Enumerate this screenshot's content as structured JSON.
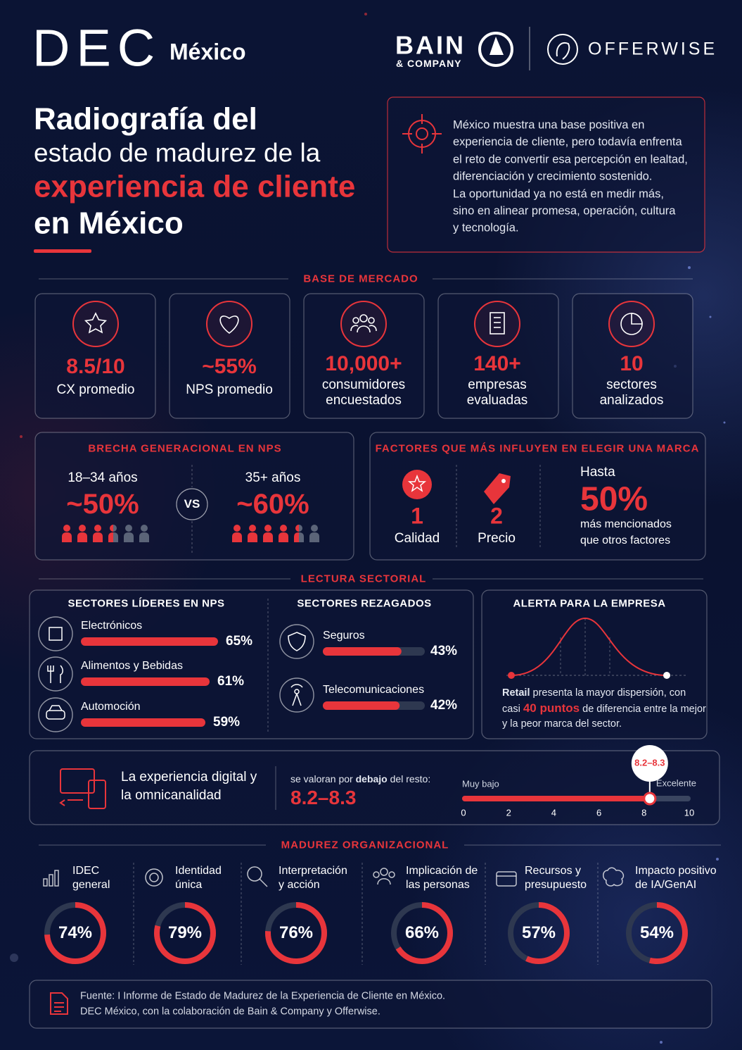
{
  "header": {
    "logo": "DEC",
    "location": "México",
    "partner1": {
      "name": "BAIN",
      "sub": "& COMPANY"
    },
    "partner2": "OFFERWISE"
  },
  "title": {
    "lines": [
      "Radiografía del",
      "estado de madurez de la",
      "experiencia de cliente",
      "en México"
    ]
  },
  "intro": {
    "lines": [
      "México muestra una base positiva en",
      "experiencia de cliente, pero todavía enfrenta",
      "el reto de convertir esa percepción en lealtad,",
      "diferenciación y crecimiento sostenido.",
      "La oportunidad ya no está en medir más,",
      "sino en alinear promesa, operación, cultura",
      "y tecnología."
    ]
  },
  "market_base": {
    "heading": "BASE DE MERCADO",
    "cards": [
      {
        "value": "8.5/10",
        "label": [
          "CX promedio"
        ]
      },
      {
        "value": "~55%",
        "label": [
          "NPS promedio"
        ]
      },
      {
        "value": "10,000+",
        "label": [
          "consumidores",
          "encuestados"
        ]
      },
      {
        "value": "140+",
        "label": [
          "empresas",
          "evaluadas"
        ]
      },
      {
        "value": "10",
        "label": [
          "sectores",
          "analizados"
        ]
      }
    ]
  },
  "generational_gap": {
    "heading": "BRECHA GENERACIONAL EN NPS",
    "vs": "VS",
    "groups": [
      {
        "age": "18–34 años",
        "value": "~50%"
      },
      {
        "age": "35+ años",
        "value": "~60%"
      }
    ]
  },
  "brand_factors": {
    "heading": "FACTORES QUE MÁS INFLUYEN EN ELEGIR UNA MARCA",
    "ranking": [
      {
        "rank": 1,
        "name": "Calidad"
      },
      {
        "rank": 2,
        "name": "Precio"
      }
    ],
    "highlight": {
      "prefix": "Hasta",
      "value": "50%",
      "lines": [
        "más mencionados",
        "que otros factores"
      ]
    }
  },
  "sector_reading": {
    "heading": "LECTURA SECTORIAL",
    "leaders": {
      "heading": "SECTORES LÍDERES EN NPS",
      "items": [
        {
          "name": "Electrónicos",
          "value": 65,
          "value_label": "65%"
        },
        {
          "name": "Alimentos y Bebidas",
          "value": 61,
          "value_label": "61%"
        },
        {
          "name": "Automoción",
          "value": 59,
          "value_label": "59%"
        }
      ]
    },
    "laggards": {
      "heading": "SECTORES REZAGADOS",
      "items": [
        {
          "name": "Seguros",
          "value": 43,
          "value_label": "43%"
        },
        {
          "name": "Telecomunicaciones",
          "value": 42,
          "value_label": "42%"
        }
      ]
    },
    "alert": {
      "heading": "ALERTA PARA LA EMPRESA",
      "text": [
        "Retail",
        " presenta la mayor dispersión, con casi ",
        "40 puntos",
        " de diferencia entre la mejor y la peor marca del sector."
      ]
    }
  },
  "digital": {
    "lines": [
      "La experiencia digital y",
      "la omnicanalidad"
    ],
    "text": [
      "se valoran por ",
      "debajo",
      " del resto:"
    ],
    "score": {
      "range": [
        8.2,
        8.3
      ],
      "label": "8.2–8.3"
    },
    "scale": {
      "min_label": "Muy bajo",
      "max_label": "Excelente",
      "ticks": [
        0,
        2,
        4,
        6,
        8,
        10
      ]
    }
  },
  "maturity": {
    "heading": "MADUREZ ORGANIZACIONAL",
    "items": [
      {
        "label": [
          "IDEC",
          "general"
        ],
        "value": 74,
        "value_label": "74%"
      },
      {
        "label": [
          "Identidad",
          "única"
        ],
        "value": 79,
        "value_label": "79%"
      },
      {
        "label": [
          "Interpretación",
          "y acción"
        ],
        "value": 76,
        "value_label": "76%"
      },
      {
        "label": [
          "Implicación de",
          "las personas"
        ],
        "value": 66,
        "value_label": "66%"
      },
      {
        "label": [
          "Recursos y",
          "presupuesto"
        ],
        "value": 57,
        "value_label": "57%"
      },
      {
        "label": [
          "Impacto positivo",
          "de IA/GenAI"
        ],
        "value": 54,
        "value_label": "54%"
      }
    ]
  },
  "source": {
    "lines": [
      "Fuente: I Informe de Estado de Madurez de la Experiencia de Cliente en México.",
      "DEC México, con la colaboración de Bain & Company y Offerwise."
    ]
  }
}
